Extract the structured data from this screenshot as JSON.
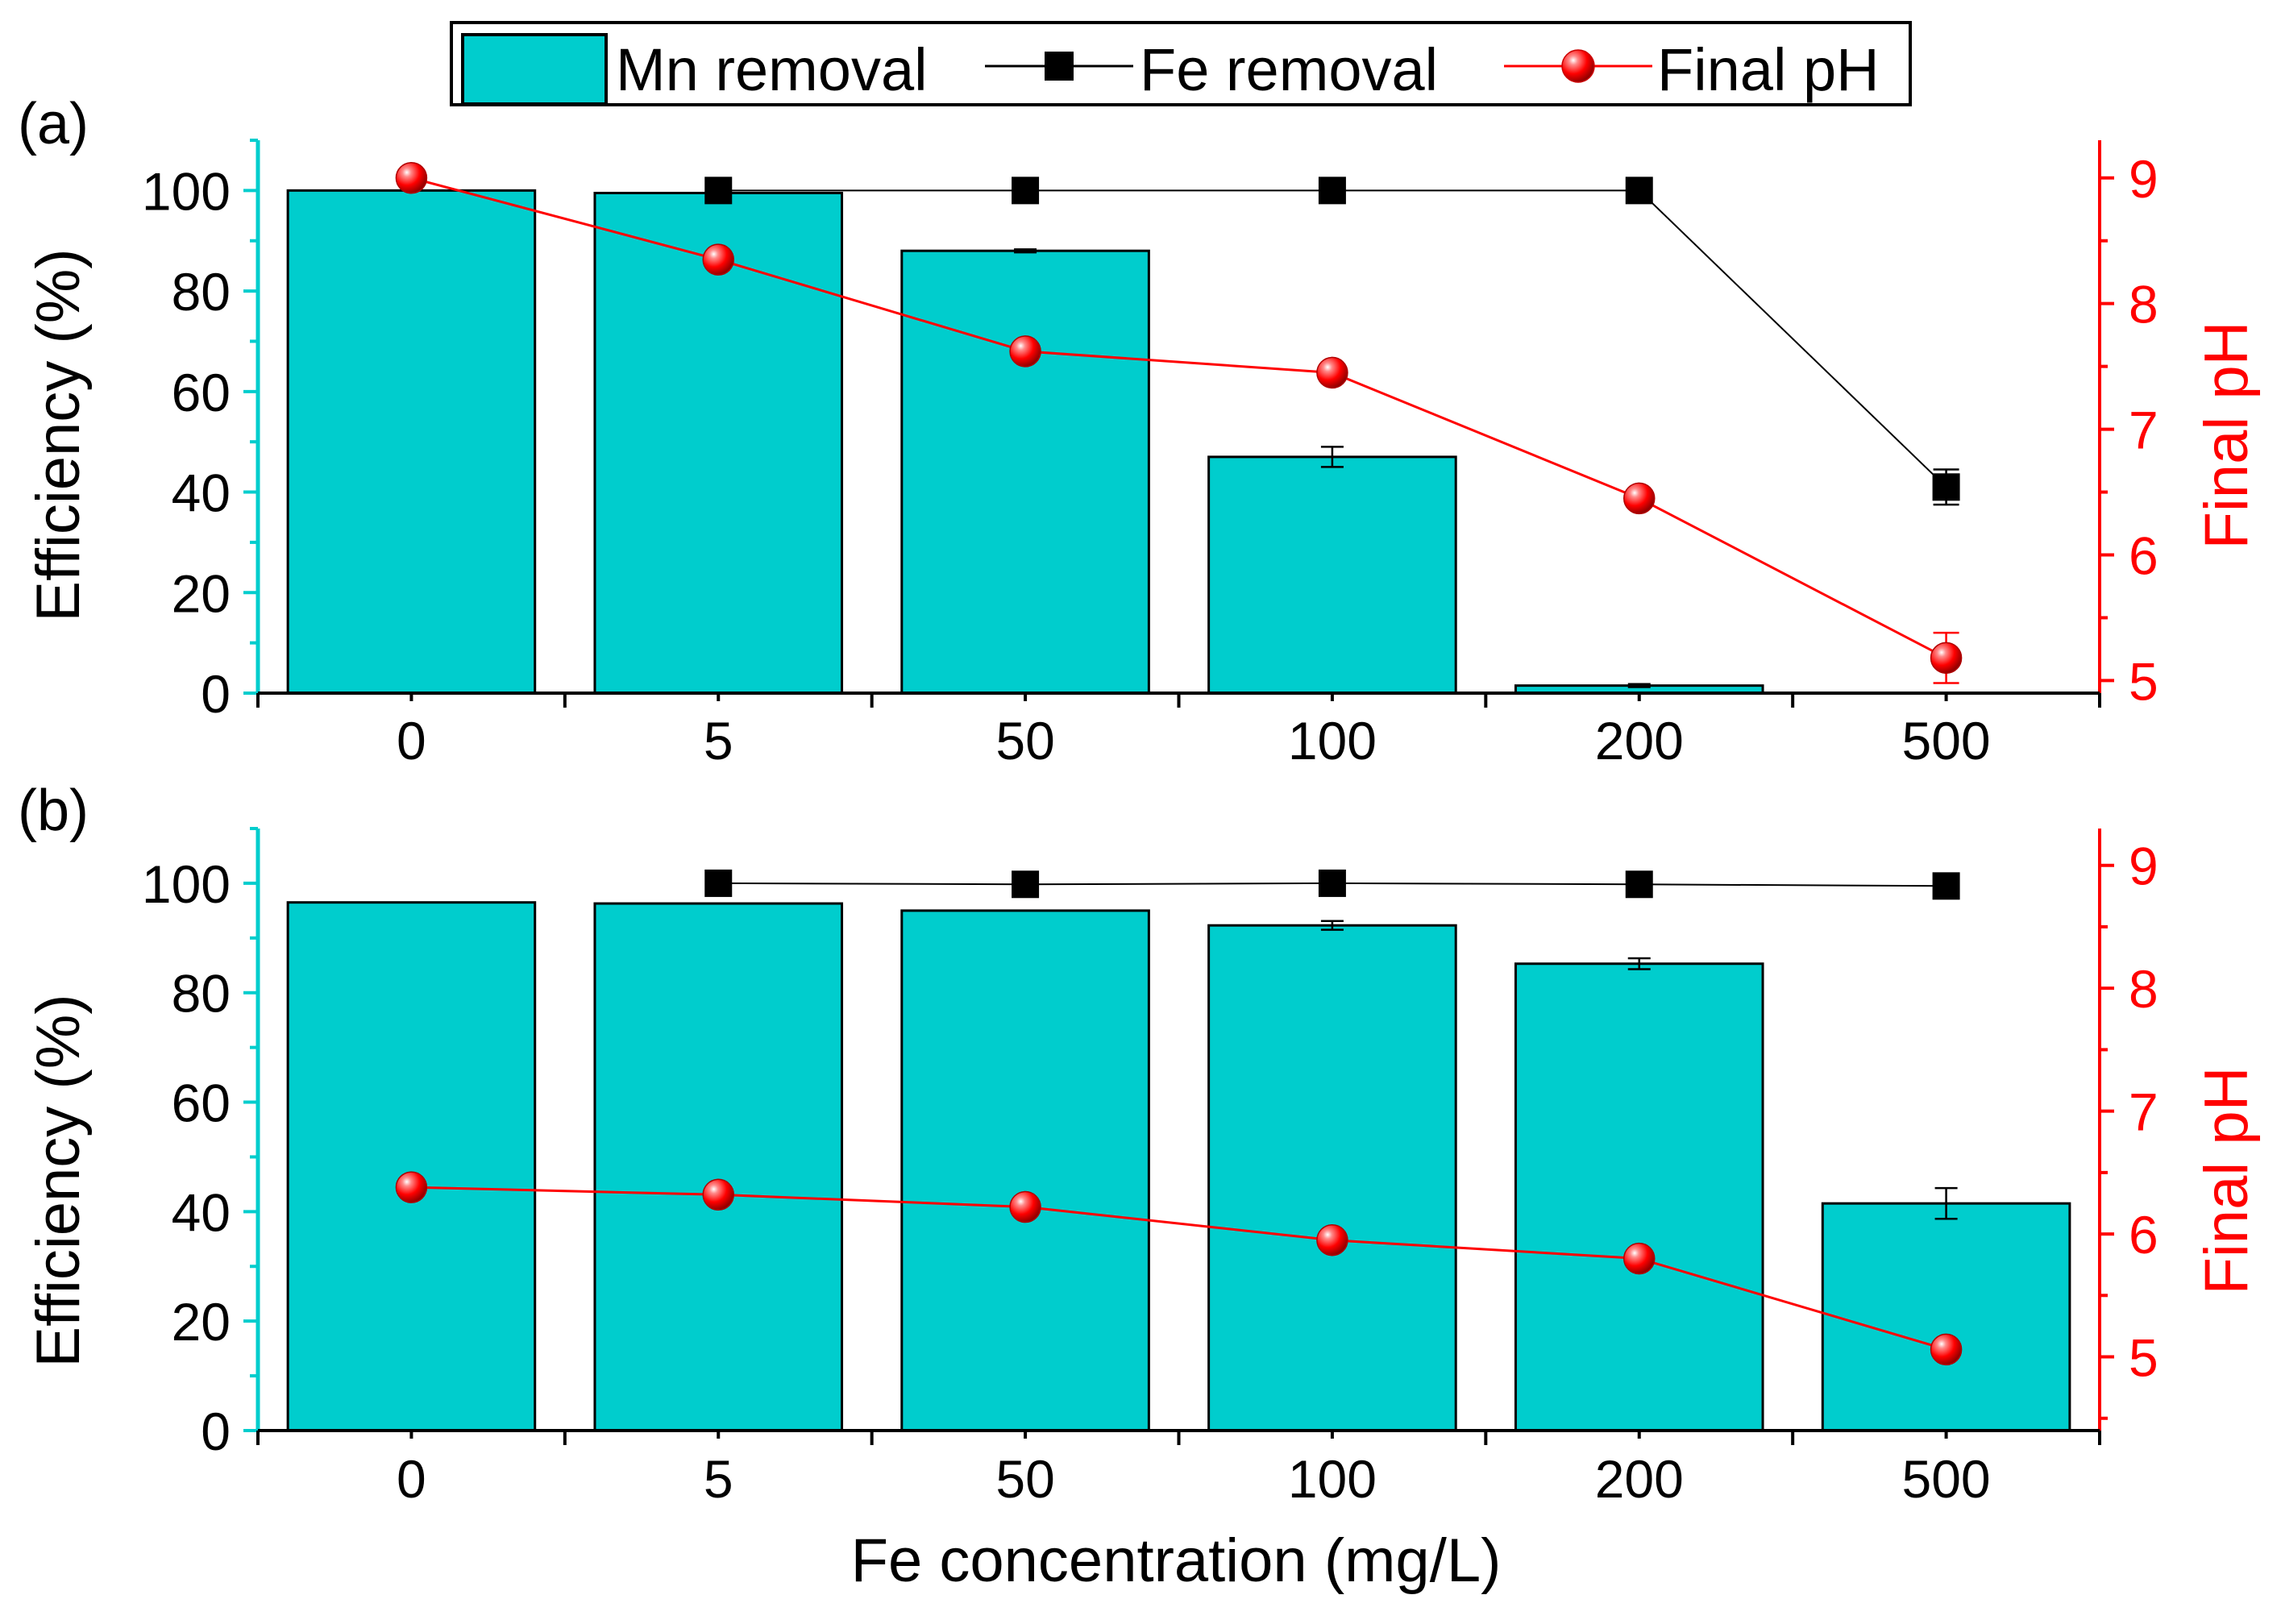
{
  "colors": {
    "bar": "#00cdcd",
    "fe": "#000000",
    "ph": "#ff0000",
    "axis": "#000000"
  },
  "legend": {
    "mn": "Mn removal",
    "fe": "Fe removal",
    "ph": "Final pH"
  },
  "xlabel": "Fe concentration (mg/L)",
  "chart_data": [
    {
      "type": "bar",
      "panel_label": "(a)",
      "categories": [
        "0",
        "5",
        "50",
        "100",
        "200",
        "500"
      ],
      "ylabel": "Efficiency (%)",
      "y2label": "Final pH",
      "ylim": [
        0,
        110
      ],
      "yticks": [
        0,
        20,
        40,
        60,
        80,
        100
      ],
      "y2lim": [
        4.9,
        9.3
      ],
      "y2ticks": [
        5,
        6,
        7,
        8,
        9
      ],
      "series": [
        {
          "name": "Mn removal",
          "type": "bar",
          "axis": "left",
          "values": [
            100,
            99.5,
            88,
            47,
            1.5,
            null
          ],
          "errors": [
            0,
            0,
            0.3,
            2,
            0.3,
            null
          ]
        },
        {
          "name": "Fe removal",
          "type": "line",
          "axis": "left",
          "values": [
            null,
            100,
            100,
            100,
            100,
            41
          ],
          "errors": [
            null,
            0,
            0,
            0,
            0,
            3.5
          ]
        },
        {
          "name": "Final pH",
          "type": "line",
          "axis": "right",
          "values": [
            9.0,
            8.35,
            7.62,
            7.45,
            6.45,
            5.18
          ],
          "errors": [
            0,
            0,
            0,
            0,
            0,
            0.2
          ]
        }
      ]
    },
    {
      "type": "bar",
      "panel_label": "(b)",
      "categories": [
        "0",
        "5",
        "50",
        "100",
        "200",
        "500"
      ],
      "ylabel": "Efficiency (%)",
      "y2label": "Final pH",
      "ylim": [
        0,
        110
      ],
      "yticks": [
        0,
        20,
        40,
        60,
        80,
        100
      ],
      "y2lim": [
        4.4,
        9.3
      ],
      "y2ticks": [
        5,
        6,
        7,
        8,
        9
      ],
      "series": [
        {
          "name": "Mn removal",
          "type": "bar",
          "axis": "left",
          "values": [
            96.5,
            96.3,
            95,
            92.3,
            85.3,
            41.5
          ],
          "errors": [
            0,
            0,
            0,
            0.8,
            1,
            2.8
          ]
        },
        {
          "name": "Fe removal",
          "type": "line",
          "axis": "left",
          "values": [
            null,
            100,
            99.8,
            100,
            99.8,
            99.5
          ],
          "errors": [
            null,
            0,
            0,
            0,
            0,
            0
          ]
        },
        {
          "name": "Final pH",
          "type": "line",
          "axis": "right",
          "values": [
            6.38,
            6.32,
            6.22,
            5.95,
            5.8,
            5.06
          ],
          "errors": [
            0,
            0,
            0,
            0,
            0,
            0
          ]
        }
      ]
    }
  ]
}
